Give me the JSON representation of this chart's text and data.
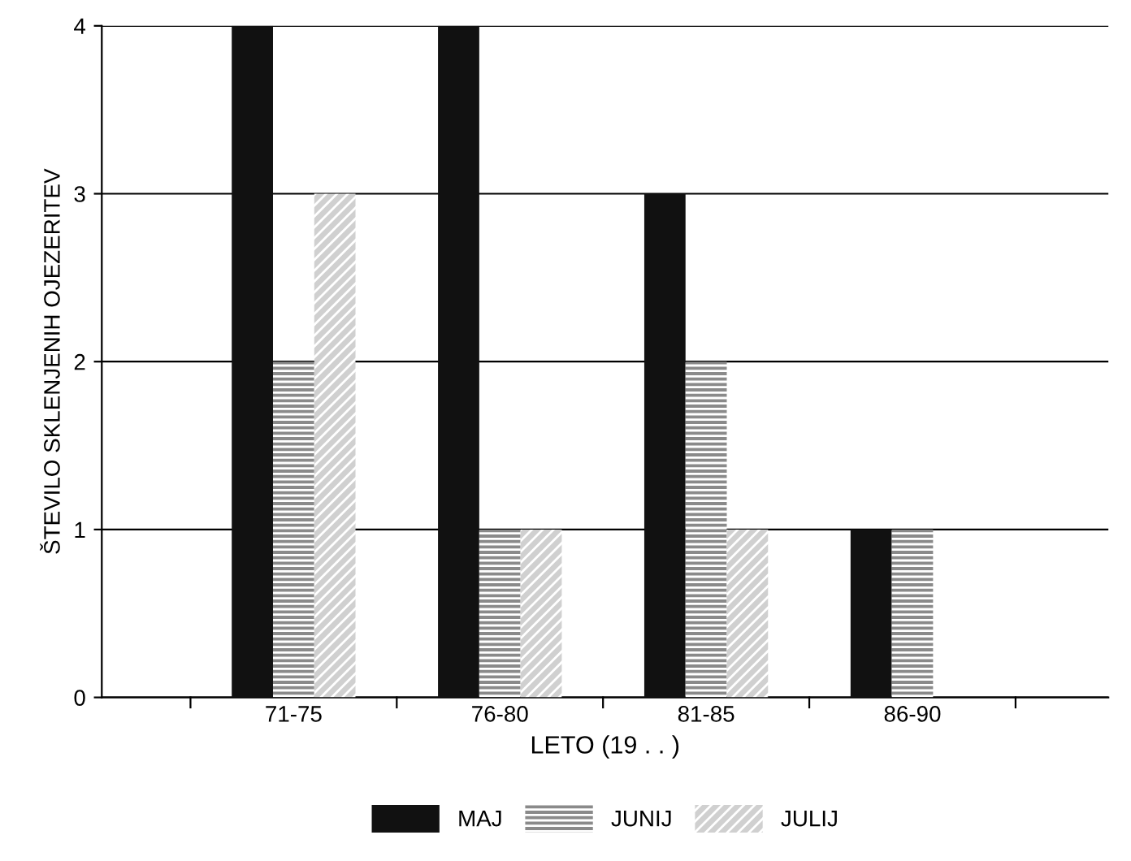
{
  "chart_data": {
    "type": "bar",
    "xlabel": "LETO (19 . . )",
    "ylabel": "ŠTEVILO SKLENJENIH OJEZERITEV",
    "categories": [
      "71-75",
      "76-80",
      "81-85",
      "86-90"
    ],
    "series": [
      {
        "name": "MAJ",
        "color": "#111111",
        "values": [
          4,
          4,
          3,
          1
        ]
      },
      {
        "name": "JUNIJ",
        "color": "#8a8a8a",
        "values": [
          2,
          1,
          2,
          1
        ]
      },
      {
        "name": "JULIJ",
        "color": "#d0d0d0",
        "values": [
          3,
          1,
          1,
          null
        ]
      }
    ],
    "ylim": [
      0,
      4
    ],
    "yticks": [
      0,
      1,
      2,
      3,
      4
    ],
    "grid": "y",
    "legend": "bottom"
  }
}
